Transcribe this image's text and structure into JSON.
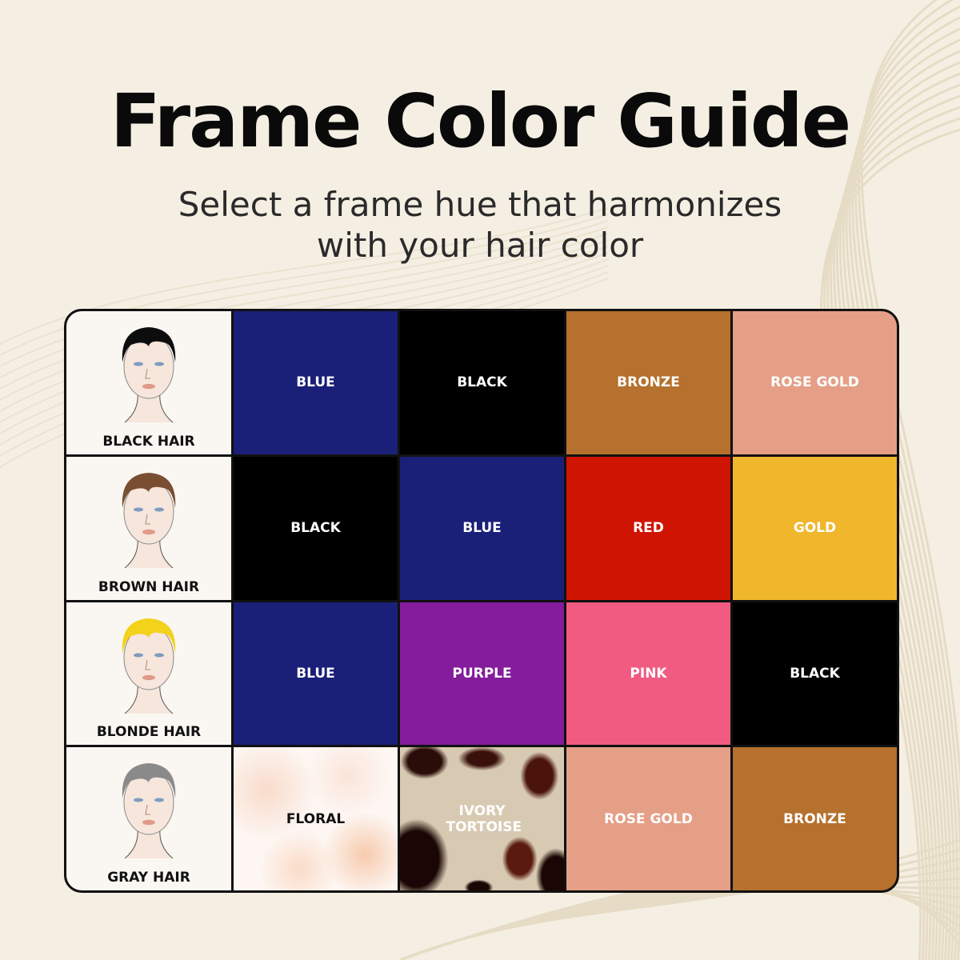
{
  "header": {
    "title": "Frame Color Guide",
    "subtitle_line1": "Select a frame hue that harmonizes",
    "subtitle_line2": "with your hair color"
  },
  "rows": [
    {
      "hair": "BLACK HAIR",
      "hair_color": "#0d0d0d",
      "frames": [
        {
          "label": "BLUE",
          "color": "#1a1f78"
        },
        {
          "label": "BLACK",
          "color": "#000000"
        },
        {
          "label": "BRONZE",
          "color": "#b5712d"
        },
        {
          "label": "ROSE GOLD",
          "color": "#e59f87"
        }
      ]
    },
    {
      "hair": "BROWN HAIR",
      "hair_color": "#7a4e33",
      "frames": [
        {
          "label": "BLACK",
          "color": "#000000"
        },
        {
          "label": "BLUE",
          "color": "#1a1f78"
        },
        {
          "label": "RED",
          "color": "#d01402"
        },
        {
          "label": "GOLD",
          "color": "#f0b72c"
        }
      ]
    },
    {
      "hair": "BLONDE HAIR",
      "hair_color": "#f2d21a",
      "frames": [
        {
          "label": "BLUE",
          "color": "#1a1f78"
        },
        {
          "label": "PURPLE",
          "color": "#841c9c"
        },
        {
          "label": "PINK",
          "color": "#f15b82"
        },
        {
          "label": "BLACK",
          "color": "#000000"
        }
      ]
    },
    {
      "hair": "GRAY HAIR",
      "hair_color": "#8a8a8a",
      "frames": [
        {
          "label": "FLORAL",
          "pattern": "floral"
        },
        {
          "label": "IVORY TORTOISE",
          "pattern": "tortoise"
        },
        {
          "label": "ROSE GOLD",
          "color": "#e59f87"
        },
        {
          "label": "BRONZE",
          "color": "#b5712d"
        }
      ]
    }
  ]
}
